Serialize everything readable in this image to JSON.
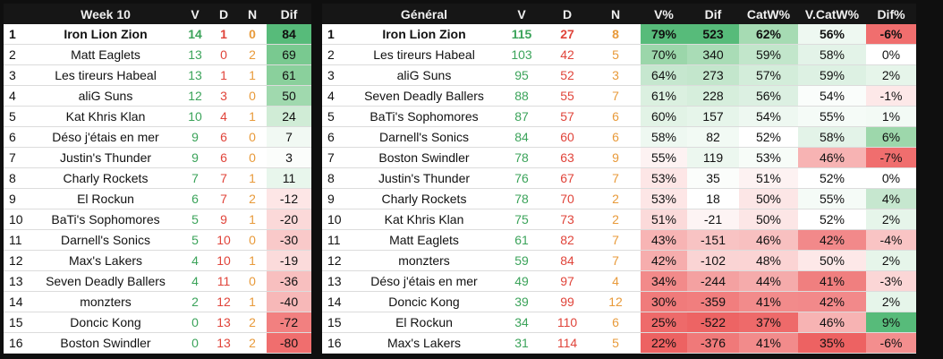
{
  "week": {
    "headers": [
      "",
      "Week 10",
      "V",
      "D",
      "N",
      "Dif"
    ],
    "rows": [
      {
        "rank": "1",
        "team": "Iron Lion Zion",
        "v": "14",
        "d": "1",
        "n": "0",
        "dif": "84",
        "dif_bg": "#57bb7a"
      },
      {
        "rank": "2",
        "team": "Matt Eaglets",
        "v": "13",
        "d": "0",
        "n": "2",
        "dif": "69",
        "dif_bg": "#79c990"
      },
      {
        "rank": "3",
        "team": "Les tireurs Habeal",
        "v": "13",
        "d": "1",
        "n": "1",
        "dif": "61",
        "dif_bg": "#8ad09c"
      },
      {
        "rank": "4",
        "team": "aliG Suns",
        "v": "12",
        "d": "3",
        "n": "0",
        "dif": "50",
        "dif_bg": "#a0d9ae"
      },
      {
        "rank": "5",
        "team": "Kat Khris Klan",
        "v": "10",
        "d": "4",
        "n": "1",
        "dif": "24",
        "dif_bg": "#d0ecd6"
      },
      {
        "rank": "6",
        "team": "Déso j'étais en mer",
        "v": "9",
        "d": "6",
        "n": "0",
        "dif": "7",
        "dif_bg": "#f1f9f3"
      },
      {
        "rank": "7",
        "team": "Justin's Thunder",
        "v": "9",
        "d": "6",
        "n": "0",
        "dif": "3",
        "dif_bg": "#fbfdfb"
      },
      {
        "rank": "8",
        "team": "Charly Rockets",
        "v": "7",
        "d": "7",
        "n": "1",
        "dif": "11",
        "dif_bg": "#e8f6ec"
      },
      {
        "rank": "9",
        "team": "El Rockun",
        "v": "6",
        "d": "7",
        "n": "2",
        "dif": "-12",
        "dif_bg": "#fde6e6"
      },
      {
        "rank": "10",
        "team": "BaTi's Sophomores",
        "v": "5",
        "d": "9",
        "n": "1",
        "dif": "-20",
        "dif_bg": "#fbd9d9"
      },
      {
        "rank": "11",
        "team": "Darnell's Sonics",
        "v": "5",
        "d": "10",
        "n": "0",
        "dif": "-30",
        "dif_bg": "#f9c9c9"
      },
      {
        "rank": "12",
        "team": "Max's Lakers",
        "v": "4",
        "d": "10",
        "n": "1",
        "dif": "-19",
        "dif_bg": "#fbdbdb"
      },
      {
        "rank": "13",
        "team": "Seven Deadly Ballers",
        "v": "4",
        "d": "11",
        "n": "0",
        "dif": "-36",
        "dif_bg": "#f8bfbf"
      },
      {
        "rank": "14",
        "team": "monzters",
        "v": "2",
        "d": "12",
        "n": "1",
        "dif": "-40",
        "dif_bg": "#f7b8b8"
      },
      {
        "rank": "15",
        "team": "Doncic Kong",
        "v": "0",
        "d": "13",
        "n": "2",
        "dif": "-72",
        "dif_bg": "#f28080"
      },
      {
        "rank": "16",
        "team": "Boston Swindler",
        "v": "0",
        "d": "13",
        "n": "2",
        "dif": "-80",
        "dif_bg": "#f06e6e"
      }
    ]
  },
  "general": {
    "headers": [
      "",
      "Général",
      "V",
      "D",
      "N",
      "V%",
      "Dif",
      "CatW%",
      "V.CatW%",
      "Dif%"
    ],
    "rows": [
      {
        "rank": "1",
        "team": "Iron Lion Zion",
        "v": "115",
        "d": "27",
        "n": "8",
        "vp": "79%",
        "dif": "523",
        "catw": "62%",
        "vcatw": "56%",
        "difp": "-6%",
        "vp_bg": "#57bb7a",
        "dif_bg": "#57bb7a",
        "catw_bg": "#a6dbb3",
        "vcatw_bg": "#eef8f1",
        "difp_bg": "#f06e6e"
      },
      {
        "rank": "2",
        "team": "Les tireurs Habeal",
        "v": "103",
        "d": "42",
        "n": "5",
        "vp": "70%",
        "dif": "340",
        "catw": "59%",
        "vcatw": "58%",
        "difp": "0%",
        "vp_bg": "#9bd6aa",
        "dif_bg": "#a9dcb6",
        "catw_bg": "#c2e6cb",
        "vcatw_bg": "#e3f3e8",
        "difp_bg": "#ffffff"
      },
      {
        "rank": "3",
        "team": "aliG Suns",
        "v": "95",
        "d": "52",
        "n": "3",
        "vp": "64%",
        "dif": "273",
        "catw": "57%",
        "vcatw": "59%",
        "difp": "2%",
        "vp_bg": "#c6e7cf",
        "dif_bg": "#c3e6cc",
        "catw_bg": "#d3edda",
        "vcatw_bg": "#ddf1e3",
        "difp_bg": "#e6f5ea"
      },
      {
        "rank": "4",
        "team": "Seven Deadly Ballers",
        "v": "88",
        "d": "55",
        "n": "7",
        "vp": "61%",
        "dif": "228",
        "catw": "56%",
        "vcatw": "54%",
        "difp": "-1%",
        "vp_bg": "#dbf0e0",
        "dif_bg": "#d6eedc",
        "catw_bg": "#dcf0e2",
        "vcatw_bg": "#fafdfb",
        "difp_bg": "#fde8e8"
      },
      {
        "rank": "5",
        "team": "BaTi's Sophomores",
        "v": "87",
        "d": "57",
        "n": "6",
        "vp": "60%",
        "dif": "157",
        "catw": "54%",
        "vcatw": "55%",
        "difp": "1%",
        "vp_bg": "#e2f3e6",
        "dif_bg": "#e6f5ea",
        "catw_bg": "#eef8f1",
        "vcatw_bg": "#f5fbf7",
        "difp_bg": "#f3faf5"
      },
      {
        "rank": "6",
        "team": "Darnell's Sonics",
        "v": "84",
        "d": "60",
        "n": "6",
        "vp": "58%",
        "dif": "82",
        "catw": "52%",
        "vcatw": "58%",
        "difp": "6%",
        "vp_bg": "#eef8f1",
        "dif_bg": "#f2faf4",
        "catw_bg": "#ffffff",
        "vcatw_bg": "#e3f3e8",
        "difp_bg": "#9dd7ab"
      },
      {
        "rank": "7",
        "team": "Boston Swindler",
        "v": "78",
        "d": "63",
        "n": "9",
        "vp": "55%",
        "dif": "119",
        "catw": "53%",
        "vcatw": "46%",
        "difp": "-7%",
        "vp_bg": "#fdf2f2",
        "dif_bg": "#ecf7ef",
        "catw_bg": "#f7fcf8",
        "vcatw_bg": "#f7b3b3",
        "difp_bg": "#f06e6e"
      },
      {
        "rank": "8",
        "team": "Justin's Thunder",
        "v": "76",
        "d": "67",
        "n": "7",
        "vp": "53%",
        "dif": "35",
        "catw": "51%",
        "vcatw": "52%",
        "difp": "0%",
        "vp_bg": "#fde6e6",
        "dif_bg": "#fbfdfb",
        "catw_bg": "#fdf2f2",
        "vcatw_bg": "#ffffff",
        "difp_bg": "#ffffff"
      },
      {
        "rank": "9",
        "team": "Charly Rockets",
        "v": "78",
        "d": "70",
        "n": "2",
        "vp": "53%",
        "dif": "18",
        "catw": "50%",
        "vcatw": "55%",
        "difp": "4%",
        "vp_bg": "#fde6e6",
        "dif_bg": "#ffffff",
        "catw_bg": "#fce6e6",
        "vcatw_bg": "#f5fbf7",
        "difp_bg": "#c6e7cf"
      },
      {
        "rank": "10",
        "team": "Kat Khris Klan",
        "v": "75",
        "d": "73",
        "n": "2",
        "vp": "51%",
        "dif": "-21",
        "catw": "50%",
        "vcatw": "52%",
        "difp": "2%",
        "vp_bg": "#fbdada",
        "dif_bg": "#fdf4f4",
        "catw_bg": "#fce6e6",
        "vcatw_bg": "#ffffff",
        "difp_bg": "#e6f5ea"
      },
      {
        "rank": "11",
        "team": "Matt Eaglets",
        "v": "61",
        "d": "82",
        "n": "7",
        "vp": "43%",
        "dif": "-151",
        "catw": "46%",
        "vcatw": "42%",
        "difp": "-4%",
        "vp_bg": "#f7b4b4",
        "dif_bg": "#f8c3c3",
        "catw_bg": "#f8c0c0",
        "vcatw_bg": "#f2898a",
        "difp_bg": "#f9c4c4"
      },
      {
        "rank": "12",
        "team": "monzters",
        "v": "59",
        "d": "84",
        "n": "7",
        "vp": "42%",
        "dif": "-102",
        "catw": "48%",
        "vcatw": "50%",
        "difp": "2%",
        "vp_bg": "#f6adad",
        "dif_bg": "#fad4d4",
        "catw_bg": "#fbd4d4",
        "vcatw_bg": "#fde8e8",
        "difp_bg": "#e6f5ea"
      },
      {
        "rank": "13",
        "team": "Déso j'étais en mer",
        "v": "49",
        "d": "97",
        "n": "4",
        "vp": "34%",
        "dif": "-244",
        "catw": "44%",
        "vcatw": "41%",
        "difp": "-3%",
        "vp_bg": "#f28a8a",
        "dif_bg": "#f4a1a1",
        "catw_bg": "#f5abab",
        "vcatw_bg": "#f07f7f",
        "difp_bg": "#fbd6d6"
      },
      {
        "rank": "14",
        "team": "Doncic Kong",
        "v": "39",
        "d": "99",
        "n": "12",
        "vp": "30%",
        "dif": "-359",
        "catw": "41%",
        "vcatw": "42%",
        "difp": "2%",
        "vp_bg": "#f07b7b",
        "dif_bg": "#f17e7e",
        "catw_bg": "#f28b8b",
        "vcatw_bg": "#f2898a",
        "difp_bg": "#e6f5ea"
      },
      {
        "rank": "15",
        "team": "El Rockun",
        "v": "34",
        "d": "110",
        "n": "6",
        "vp": "25%",
        "dif": "-522",
        "catw": "37%",
        "vcatw": "46%",
        "difp": "9%",
        "vp_bg": "#ee6a6a",
        "dif_bg": "#ed6464",
        "catw_bg": "#ee6a6a",
        "vcatw_bg": "#f7b3b3",
        "difp_bg": "#57bb7a"
      },
      {
        "rank": "16",
        "team": "Max's Lakers",
        "v": "31",
        "d": "114",
        "n": "5",
        "vp": "22%",
        "dif": "-376",
        "catw": "41%",
        "vcatw": "35%",
        "difp": "-6%",
        "vp_bg": "#ed6262",
        "dif_bg": "#f07979",
        "catw_bg": "#f28b8b",
        "vcatw_bg": "#ed6262",
        "difp_bg": "#f38e8e"
      }
    ]
  }
}
